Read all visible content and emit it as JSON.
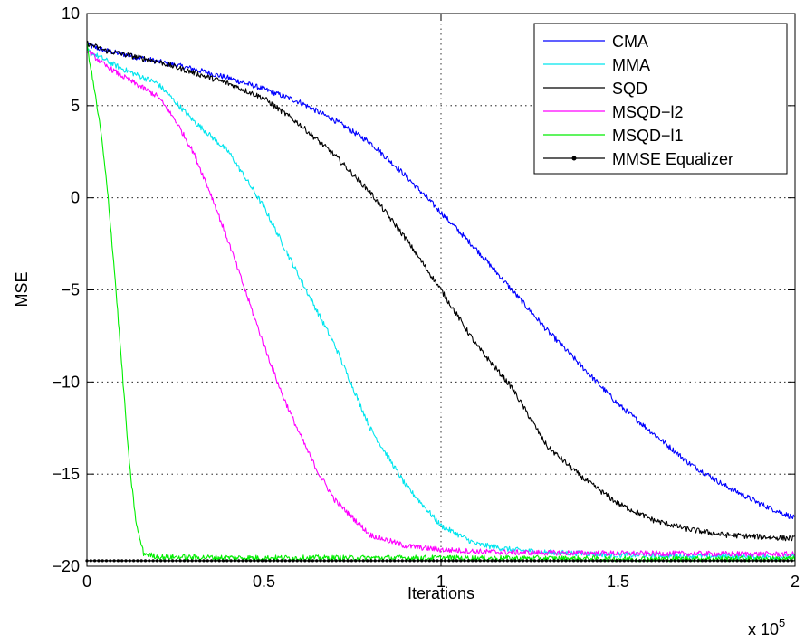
{
  "chart_data": {
    "type": "line",
    "xlabel": "Iterations",
    "ylabel": "MSE",
    "x_multiplier_label": "x 10",
    "x_multiplier_exp": "5",
    "xlim": [
      0,
      2
    ],
    "ylim": [
      -20,
      10
    ],
    "xticks": [
      0,
      0.5,
      1,
      1.5,
      2
    ],
    "xtick_labels": [
      "0",
      "0.5",
      "1",
      "1.5",
      "2"
    ],
    "yticks": [
      -20,
      -15,
      -10,
      -5,
      0,
      5,
      10
    ],
    "ytick_labels": [
      "−20",
      "−15",
      "−10",
      "−5",
      "0",
      "5",
      "10"
    ],
    "grid": true,
    "legend_position": "top-right",
    "series": [
      {
        "name": "CMA",
        "color": "#0000ff",
        "x": [
          0,
          0.05,
          0.1,
          0.2,
          0.3,
          0.4,
          0.5,
          0.6,
          0.7,
          0.8,
          0.9,
          1.0,
          1.1,
          1.2,
          1.3,
          1.4,
          1.5,
          1.6,
          1.7,
          1.8,
          1.9,
          2.0
        ],
        "y": [
          8.3,
          8.0,
          7.8,
          7.4,
          7.0,
          6.5,
          5.9,
          5.2,
          4.2,
          3.0,
          1.2,
          -0.8,
          -2.8,
          -5.0,
          -7.2,
          -9.2,
          -11.2,
          -12.8,
          -14.4,
          -15.6,
          -16.6,
          -17.4
        ]
      },
      {
        "name": "MMA",
        "color": "#00e5ee",
        "x": [
          0,
          0.05,
          0.1,
          0.2,
          0.3,
          0.4,
          0.5,
          0.6,
          0.7,
          0.8,
          0.9,
          1.0,
          1.1,
          1.2,
          1.3,
          1.4,
          1.5,
          1.6,
          1.7,
          1.8,
          1.9,
          2.0
        ],
        "y": [
          8.0,
          7.5,
          7.0,
          6.2,
          4.2,
          2.5,
          -0.5,
          -4.3,
          -8.0,
          -12.5,
          -15.6,
          -17.8,
          -18.8,
          -19.1,
          -19.25,
          -19.3,
          -19.4,
          -19.4,
          -19.45,
          -19.45,
          -19.5,
          -19.5
        ]
      },
      {
        "name": "SQD",
        "color": "#000000",
        "x": [
          0,
          0.05,
          0.1,
          0.2,
          0.3,
          0.4,
          0.5,
          0.6,
          0.7,
          0.8,
          0.9,
          1.0,
          1.05,
          1.1,
          1.2,
          1.3,
          1.4,
          1.5,
          1.6,
          1.7,
          1.8,
          1.9,
          2.0
        ],
        "y": [
          8.4,
          8.0,
          7.8,
          7.4,
          6.8,
          6.2,
          5.4,
          4.0,
          2.3,
          0.3,
          -2.2,
          -5.0,
          -6.5,
          -8.0,
          -10.3,
          -13.5,
          -15.2,
          -16.6,
          -17.5,
          -18.0,
          -18.3,
          -18.4,
          -18.5
        ]
      },
      {
        "name": "MSQD−l2",
        "color": "#ff00ff",
        "x": [
          0,
          0.05,
          0.1,
          0.2,
          0.25,
          0.3,
          0.35,
          0.4,
          0.45,
          0.5,
          0.55,
          0.6,
          0.65,
          0.7,
          0.8,
          0.9,
          1.0,
          1.1,
          1.2,
          1.5,
          2.0
        ],
        "y": [
          8.0,
          7.2,
          6.6,
          5.5,
          4.2,
          2.5,
          0.2,
          -2.4,
          -5.2,
          -8.0,
          -10.6,
          -12.8,
          -14.8,
          -16.4,
          -18.3,
          -18.9,
          -19.1,
          -19.2,
          -19.25,
          -19.3,
          -19.35
        ]
      },
      {
        "name": "MSQD−l1",
        "color": "#00ee00",
        "x": [
          0,
          0.02,
          0.04,
          0.06,
          0.08,
          0.1,
          0.12,
          0.14,
          0.16,
          0.2,
          0.5,
          1.0,
          1.5,
          2.0
        ],
        "y": [
          8.3,
          6.0,
          3.5,
          0.0,
          -4.5,
          -9.5,
          -14.5,
          -17.8,
          -19.3,
          -19.5,
          -19.55,
          -19.55,
          -19.6,
          -19.6
        ]
      },
      {
        "name": "MMSE Equalizer",
        "color": "#000000",
        "marker": "dot",
        "x": [
          0,
          2
        ],
        "y": [
          -19.7,
          -19.7
        ]
      }
    ]
  }
}
